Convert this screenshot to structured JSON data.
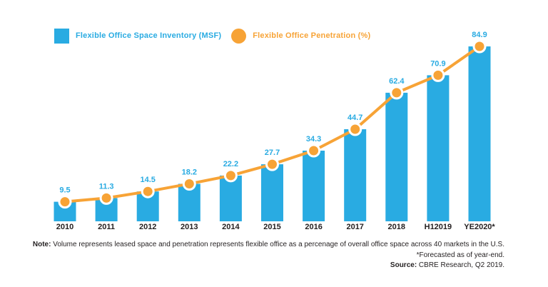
{
  "legend": {
    "inventory": "Flexible Office Space Inventory (MSF)",
    "penetration": "Flexible Office Penetration (%)"
  },
  "colors": {
    "bar": "#29ABE2",
    "line": "#F7A336",
    "marker": "#F7A336",
    "marker_ring": "#FFFFFF",
    "value_label": "#29ABE2",
    "axis_text": "#231F20"
  },
  "chart_data": {
    "type": "bar",
    "subtype": "bar+line combo, shared values",
    "categories": [
      "2010",
      "2011",
      "2012",
      "2013",
      "2014",
      "2015",
      "2016",
      "2017",
      "2018",
      "H12019",
      "YE2020*"
    ],
    "values": [
      9.5,
      11.3,
      14.5,
      18.2,
      22.2,
      27.7,
      34.3,
      44.7,
      62.4,
      70.9,
      84.9
    ],
    "value_labels": [
      "9.5",
      "11.3",
      "14.5",
      "18.2",
      "22.2",
      "27.7",
      "34.3",
      "44.7",
      "62.4",
      "70.9",
      "84.9"
    ],
    "series": [
      {
        "name": "Flexible Office Space Inventory (MSF)",
        "type": "bar"
      },
      {
        "name": "Flexible Office Penetration (%)",
        "type": "line"
      }
    ],
    "title": "",
    "xlabel": "",
    "ylabel": "",
    "ylim": [
      0,
      90
    ],
    "grid": false,
    "legend_position": "top-left",
    "data_labels": true
  },
  "footer": {
    "note_label": "Note:",
    "note_text": " Volume represents leased space and penetration represents flexible office as a percenage of overall office space across 40 markets in the U.S.",
    "forecast_line": "*Forecasted as of year-end.",
    "source_label": "Source:",
    "source_text": " CBRE Research, Q2 2019."
  }
}
